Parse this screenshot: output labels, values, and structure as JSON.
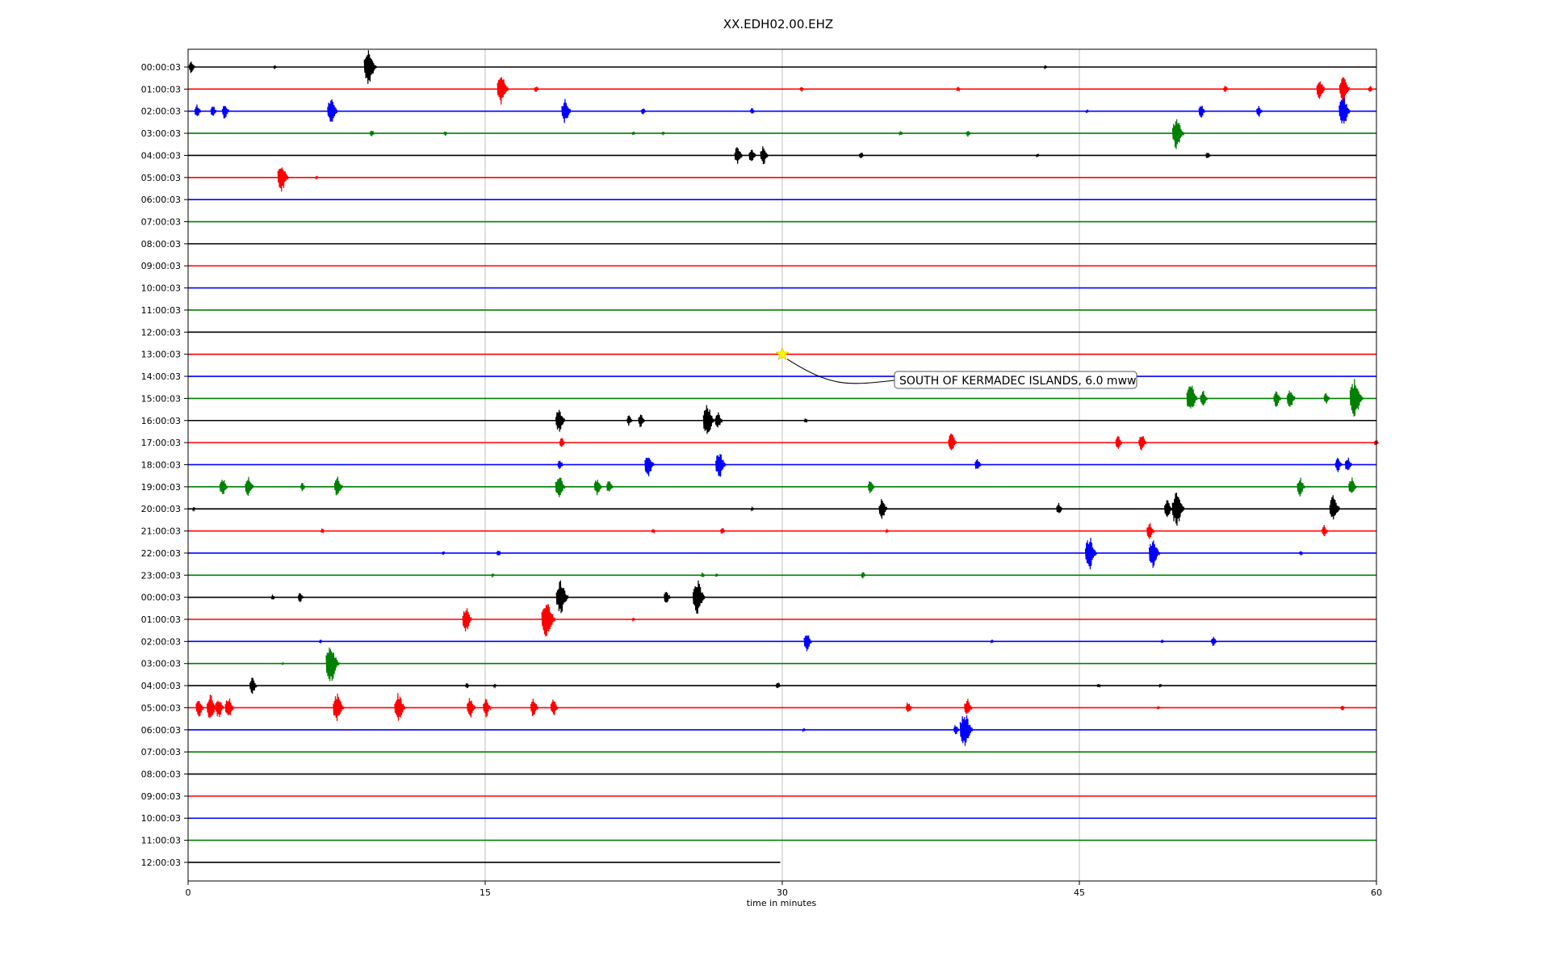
{
  "chart_data": {
    "type": "line",
    "title": "XX.EDH02.00.EHZ",
    "xlabel": "time in minutes",
    "ylabel": "",
    "xlim": [
      0,
      60
    ],
    "x_ticks": [
      "0",
      "15",
      "30",
      "45",
      "60"
    ],
    "grid": "vertical",
    "colors": [
      "#000000",
      "#ff0000",
      "#0000ff",
      "#008000"
    ],
    "hour_labels": [
      "00:00:03",
      "01:00:03",
      "02:00:03",
      "03:00:03",
      "04:00:03",
      "05:00:03",
      "06:00:03",
      "07:00:03",
      "08:00:03",
      "09:00:03",
      "10:00:03",
      "11:00:03",
      "12:00:03",
      "13:00:03",
      "14:00:03",
      "15:00:03",
      "16:00:03",
      "17:00:03",
      "18:00:03",
      "19:00:03",
      "20:00:03",
      "21:00:03",
      "22:00:03",
      "23:00:03",
      "00:00:03",
      "01:00:03",
      "02:00:03",
      "03:00:03",
      "04:00:03",
      "05:00:03",
      "06:00:03",
      "07:00:03",
      "08:00:03",
      "09:00:03",
      "10:00:03",
      "11:00:03",
      "12:00:03"
    ],
    "last_trace_end_minute": 29.9,
    "events": [
      {
        "row": 0,
        "bursts": [
          [
            0.2,
            0.35
          ],
          [
            4.4,
            0.1
          ],
          [
            9.2,
            1.0
          ],
          [
            43.3,
            0.1
          ]
        ]
      },
      {
        "row": 1,
        "bursts": [
          [
            15.9,
            0.9
          ],
          [
            17.6,
            0.2
          ],
          [
            31,
            0.15
          ],
          [
            38.9,
            0.15
          ],
          [
            52.4,
            0.2
          ],
          [
            57.2,
            0.6
          ],
          [
            58.4,
            0.8
          ],
          [
            59.7,
            0.2
          ]
        ]
      },
      {
        "row": 2,
        "bursts": [
          [
            0.5,
            0.4
          ],
          [
            1.3,
            0.35
          ],
          [
            1.9,
            0.45
          ],
          [
            7.3,
            0.8
          ],
          [
            19.1,
            0.7
          ],
          [
            23,
            0.2
          ],
          [
            28.5,
            0.2
          ],
          [
            45.4,
            0.1
          ],
          [
            51.2,
            0.4
          ],
          [
            54.1,
            0.35
          ],
          [
            58.4,
            0.9
          ]
        ]
      },
      {
        "row": 3,
        "bursts": [
          [
            9.3,
            0.2
          ],
          [
            13,
            0.15
          ],
          [
            22.5,
            0.1
          ],
          [
            24,
            0.1
          ],
          [
            36,
            0.15
          ],
          [
            39.4,
            0.2
          ],
          [
            50,
            0.95
          ]
        ]
      },
      {
        "row": 4,
        "bursts": [
          [
            27.8,
            0.55
          ],
          [
            28.5,
            0.45
          ],
          [
            29.1,
            0.55
          ],
          [
            34,
            0.2
          ],
          [
            42.9,
            0.1
          ],
          [
            51.5,
            0.2
          ]
        ]
      },
      {
        "row": 5,
        "bursts": [
          [
            4.8,
            0.85
          ],
          [
            6.5,
            0.1
          ]
        ]
      },
      {
        "row": 15,
        "bursts": [
          [
            50.7,
            0.85
          ],
          [
            51.3,
            0.5
          ],
          [
            55,
            0.5
          ],
          [
            55.7,
            0.6
          ],
          [
            57.5,
            0.35
          ],
          [
            59,
            1.1
          ]
        ]
      },
      {
        "row": 16,
        "bursts": [
          [
            18.8,
            0.7
          ],
          [
            22.3,
            0.3
          ],
          [
            22.9,
            0.4
          ],
          [
            26.3,
            0.9
          ],
          [
            26.8,
            0.5
          ],
          [
            31.2,
            0.15
          ]
        ]
      },
      {
        "row": 17,
        "bursts": [
          [
            18.9,
            0.3
          ],
          [
            38.6,
            0.6
          ],
          [
            47,
            0.4
          ],
          [
            48.2,
            0.55
          ],
          [
            60,
            0.2
          ]
        ]
      },
      {
        "row": 18,
        "bursts": [
          [
            18.8,
            0.3
          ],
          [
            23.3,
            0.7
          ],
          [
            26.9,
            0.8
          ],
          [
            39.9,
            0.4
          ],
          [
            58.1,
            0.45
          ],
          [
            58.6,
            0.45
          ]
        ]
      },
      {
        "row": 19,
        "bursts": [
          [
            1.8,
            0.55
          ],
          [
            3.1,
            0.6
          ],
          [
            5.8,
            0.25
          ],
          [
            7.6,
            0.6
          ],
          [
            18.8,
            0.75
          ],
          [
            20.7,
            0.5
          ],
          [
            21.3,
            0.4
          ],
          [
            34.5,
            0.4
          ],
          [
            56.2,
            0.55
          ],
          [
            58.8,
            0.55
          ]
        ]
      },
      {
        "row": 20,
        "bursts": [
          [
            0.3,
            0.1
          ],
          [
            28.5,
            0.1
          ],
          [
            35.1,
            0.6
          ],
          [
            44,
            0.35
          ],
          [
            49.5,
            0.55
          ],
          [
            50,
            1.0
          ],
          [
            57.9,
            0.8
          ]
        ]
      },
      {
        "row": 21,
        "bursts": [
          [
            6.8,
            0.15
          ],
          [
            23.5,
            0.15
          ],
          [
            27,
            0.2
          ],
          [
            35.3,
            0.1
          ],
          [
            48.6,
            0.5
          ],
          [
            57.4,
            0.35
          ]
        ]
      },
      {
        "row": 22,
        "bursts": [
          [
            12.9,
            0.1
          ],
          [
            15.7,
            0.2
          ],
          [
            45.6,
            0.95
          ],
          [
            48.8,
            0.85
          ],
          [
            56.2,
            0.15
          ]
        ]
      },
      {
        "row": 23,
        "bursts": [
          [
            15.4,
            0.1
          ],
          [
            26,
            0.15
          ],
          [
            34.1,
            0.2
          ],
          [
            26.7,
            0.1
          ]
        ]
      },
      {
        "row": 24,
        "bursts": [
          [
            4.3,
            0.15
          ],
          [
            5.7,
            0.3
          ],
          [
            18.9,
            1.0
          ],
          [
            24.2,
            0.4
          ],
          [
            25.8,
            1.0
          ]
        ]
      },
      {
        "row": 25,
        "bursts": [
          [
            14.1,
            0.7
          ],
          [
            18.2,
            1.15
          ],
          [
            22.5,
            0.1
          ]
        ]
      },
      {
        "row": 26,
        "bursts": [
          [
            6.7,
            0.1
          ],
          [
            31.3,
            0.55
          ],
          [
            40.6,
            0.1
          ],
          [
            49.2,
            0.1
          ],
          [
            51.8,
            0.3
          ]
        ]
      },
      {
        "row": 27,
        "bursts": [
          [
            7.3,
            1.1
          ],
          [
            4.8,
            0.05
          ]
        ]
      },
      {
        "row": 28,
        "bursts": [
          [
            3.3,
            0.5
          ],
          [
            14.1,
            0.15
          ],
          [
            15.5,
            0.1
          ],
          [
            29.8,
            0.2
          ],
          [
            46,
            0.15
          ],
          [
            49.1,
            0.1
          ]
        ]
      },
      {
        "row": 29,
        "bursts": [
          [
            0.6,
            0.55
          ],
          [
            1.2,
            0.75
          ],
          [
            1.6,
            0.6
          ],
          [
            2.1,
            0.65
          ],
          [
            7.6,
            0.85
          ],
          [
            10.7,
            0.85
          ],
          [
            14.3,
            0.6
          ],
          [
            15.1,
            0.55
          ],
          [
            17.5,
            0.55
          ],
          [
            18.5,
            0.5
          ],
          [
            36.4,
            0.35
          ],
          [
            39.4,
            0.55
          ],
          [
            49,
            0.1
          ],
          [
            58.3,
            0.15
          ]
        ]
      },
      {
        "row": 30,
        "bursts": [
          [
            31.1,
            0.1
          ],
          [
            38.8,
            0.3
          ],
          [
            39.3,
            1.05
          ]
        ]
      }
    ],
    "annotations": [
      {
        "text": "SOUTH OF KERMADEC ISLANDS, 6.0 mww",
        "x": 30,
        "row": 13,
        "marker": "star",
        "marker_color": "#ffff00"
      }
    ]
  }
}
